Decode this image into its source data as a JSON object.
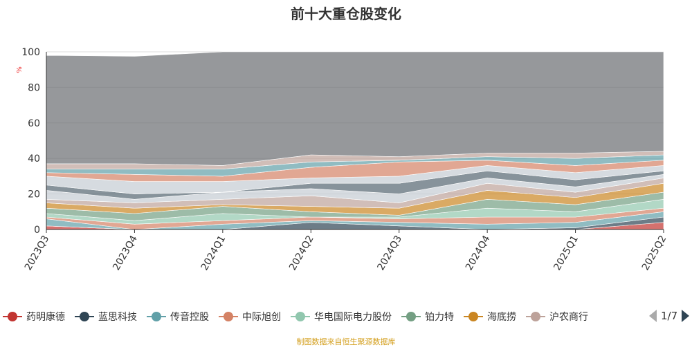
{
  "chart_data": {
    "type": "area",
    "stacked": true,
    "title": "前十大重仓股变化",
    "ylabel": "%",
    "ylim": [
      0,
      100
    ],
    "yticks": [
      0,
      20,
      40,
      60,
      80,
      100
    ],
    "categories": [
      "2023Q3",
      "2023Q4",
      "2024Q1",
      "2024Q2",
      "2024Q3",
      "2024Q4",
      "2025Q1",
      "2025Q2"
    ],
    "total": [
      98,
      97.5,
      100,
      100,
      100,
      100,
      100,
      100
    ],
    "series": [
      {
        "name": "药明康德",
        "color": "#c23531",
        "values": [
          2,
          0,
          0,
          0,
          0,
          0,
          0,
          4
        ]
      },
      {
        "name": "蓝思科技",
        "color": "#2f4554",
        "values": [
          0,
          0,
          0,
          4,
          2,
          0,
          1,
          3
        ]
      },
      {
        "name": "传音控股",
        "color": "#61a0a8",
        "values": [
          4,
          0,
          3,
          1,
          2,
          3,
          3,
          3
        ]
      },
      {
        "name": "中际旭创",
        "color": "#d48265",
        "values": [
          1,
          3,
          2,
          2,
          2,
          4,
          3,
          2
        ]
      },
      {
        "name": "华电国际电力股份",
        "color": "#91c7ae",
        "values": [
          2,
          2,
          4,
          0,
          1,
          5,
          3,
          5
        ]
      },
      {
        "name": "铂力特",
        "color": "#749f83",
        "values": [
          3,
          4,
          4,
          3,
          1,
          5,
          4,
          4
        ]
      },
      {
        "name": "海底捞",
        "color": "#ca8622",
        "values": [
          3,
          3,
          1,
          3,
          4,
          5,
          4,
          5
        ]
      },
      {
        "name": "沪农商行",
        "color": "#bda29a",
        "values": [
          2,
          3,
          3,
          6,
          3,
          4,
          3,
          3
        ]
      },
      {
        "name": null,
        "color": "#c4ccd3",
        "values": [
          5,
          2,
          4,
          4,
          5,
          3,
          3,
          2
        ]
      },
      {
        "name": null,
        "color": "#546570",
        "values": [
          3,
          3,
          0,
          3,
          6,
          4,
          4,
          2
        ]
      },
      {
        "name": null,
        "color": "#c4ccd3",
        "values": [
          5,
          7,
          6,
          3,
          4,
          3,
          4,
          3
        ]
      },
      {
        "name": null,
        "color": "#d48265",
        "values": [
          2,
          4,
          3,
          6,
          8,
          3,
          4,
          3
        ]
      },
      {
        "name": null,
        "color": "#61a0a8",
        "values": [
          2,
          3,
          4,
          3,
          1,
          2,
          4,
          3
        ]
      },
      {
        "name": null,
        "color": "#bda29a",
        "values": [
          3,
          3,
          2,
          4,
          2,
          2,
          3,
          2
        ]
      }
    ],
    "remainder_color": "#6e7074",
    "legend_position": "bottom"
  },
  "legend": {
    "page": "1/7"
  },
  "footer": "制图数据来自恒生聚源数据库"
}
